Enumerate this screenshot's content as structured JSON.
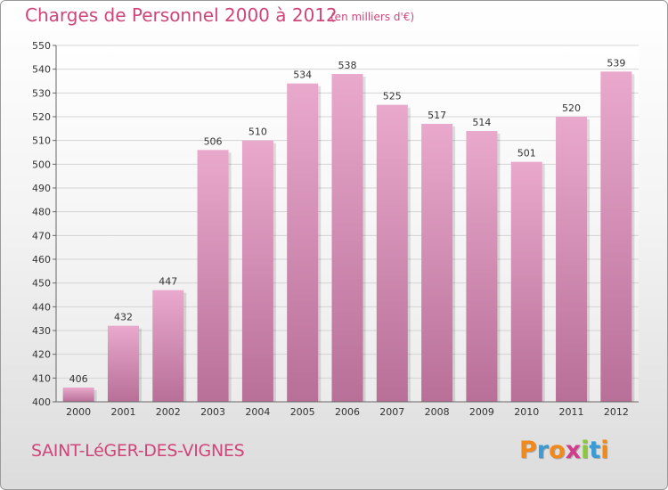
{
  "header": {
    "title": "Charges de Personnel 2000 à 2012",
    "unit": "(en milliers d'€)"
  },
  "footer": {
    "town": "SAINT-LéGER-DES-VIGNES",
    "logo": "Proxiti",
    "logo_colors": [
      "#f08a1c",
      "#3a9bd6",
      "#f08a1c",
      "#d23c8c",
      "#8cc63f",
      "#3a9bd6",
      "#f08a1c"
    ]
  },
  "colors": {
    "text": "#d0457a",
    "bar_light": "#e9a9cc",
    "bar_dark": "#b86f98",
    "grid": "#d4d4d4"
  },
  "chart_data": {
    "type": "bar",
    "title": "Charges de Personnel 2000 à 2012",
    "categories": [
      "2000",
      "2001",
      "2002",
      "2003",
      "2004",
      "2005",
      "2006",
      "2007",
      "2008",
      "2009",
      "2010",
      "2011",
      "2012"
    ],
    "values": [
      406,
      432,
      447,
      506,
      510,
      534,
      538,
      525,
      517,
      514,
      501,
      520,
      539
    ],
    "ylim": [
      400,
      550
    ],
    "yticks": [
      400,
      410,
      420,
      430,
      440,
      450,
      460,
      470,
      480,
      490,
      500,
      510,
      520,
      530,
      540,
      550
    ],
    "grid": true,
    "xlabel": "",
    "ylabel": ""
  }
}
